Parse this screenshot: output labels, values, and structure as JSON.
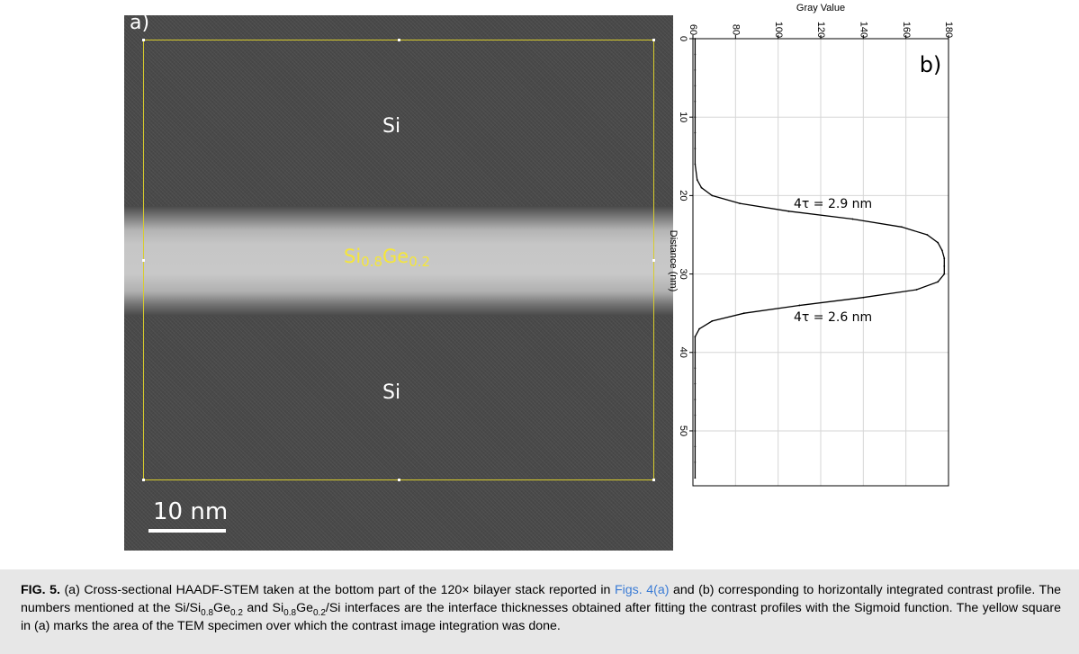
{
  "panel_a": {
    "label": "a)",
    "top_layer": "Si",
    "middle_layer": {
      "base1": "Si",
      "sub1": "0.8",
      "base2": "Ge",
      "sub2": "0.2"
    },
    "bottom_layer": "Si",
    "scale_bar_label": "10 nm",
    "selection_box_color": "#d8cc2c",
    "annotation_color": "#f5e63a"
  },
  "panel_b": {
    "label": "b)",
    "annotations": [
      "4τ = 2.9 nm",
      "4τ = 2.6 nm"
    ]
  },
  "chart_data": {
    "type": "line",
    "title": "",
    "orientation": "rotated: distance runs top-to-bottom, gray value increases left-to-right",
    "xlabel": "Distance (nm)",
    "ylabel": "Gray Value",
    "xlim": [
      0,
      57
    ],
    "ylim": [
      60,
      180
    ],
    "x_ticks": [
      0,
      10,
      20,
      30,
      40,
      50
    ],
    "y_ticks": [
      60,
      80,
      100,
      120,
      140,
      160,
      180
    ],
    "grid": true,
    "series": [
      {
        "name": "contrast profile",
        "x": [
          0,
          2,
          4,
          6,
          8,
          10,
          12,
          14,
          16,
          18,
          19,
          20,
          21,
          22,
          23,
          24,
          25,
          26,
          27,
          28,
          29,
          30,
          31,
          32,
          33,
          34,
          35,
          36,
          37,
          38,
          40,
          42,
          44,
          46,
          48,
          50,
          52,
          54,
          56
        ],
        "y": [
          61,
          61,
          61,
          61,
          61,
          61,
          61,
          61,
          61,
          62,
          64,
          69,
          82,
          105,
          135,
          158,
          170,
          175,
          177,
          178,
          178,
          178,
          175,
          165,
          140,
          110,
          84,
          69,
          63,
          61,
          61,
          61,
          61,
          61,
          61,
          61,
          61,
          61,
          61
        ]
      }
    ]
  },
  "caption": {
    "fig_label": "FIG. 5.",
    "text_1": " (a) Cross-sectional HAADF-STEM taken at the bottom part of the 120× bilayer stack reported in ",
    "link": "Figs. 4(a)",
    "text_2": " and (b) corresponding to horizontally integrated contrast profile. The numbers mentioned at the Si/Si",
    "sub_a": "0.8",
    "text_3": "Ge",
    "sub_b": "0.2",
    "text_4": " and Si",
    "sub_c": "0.8",
    "text_5": "Ge",
    "sub_d": "0.2",
    "text_6": "/Si interfaces are the interface thicknesses obtained after fitting the contrast profiles with the Sigmoid function. The yellow square in (a) marks the area of the TEM specimen over which the contrast image integration was done."
  }
}
